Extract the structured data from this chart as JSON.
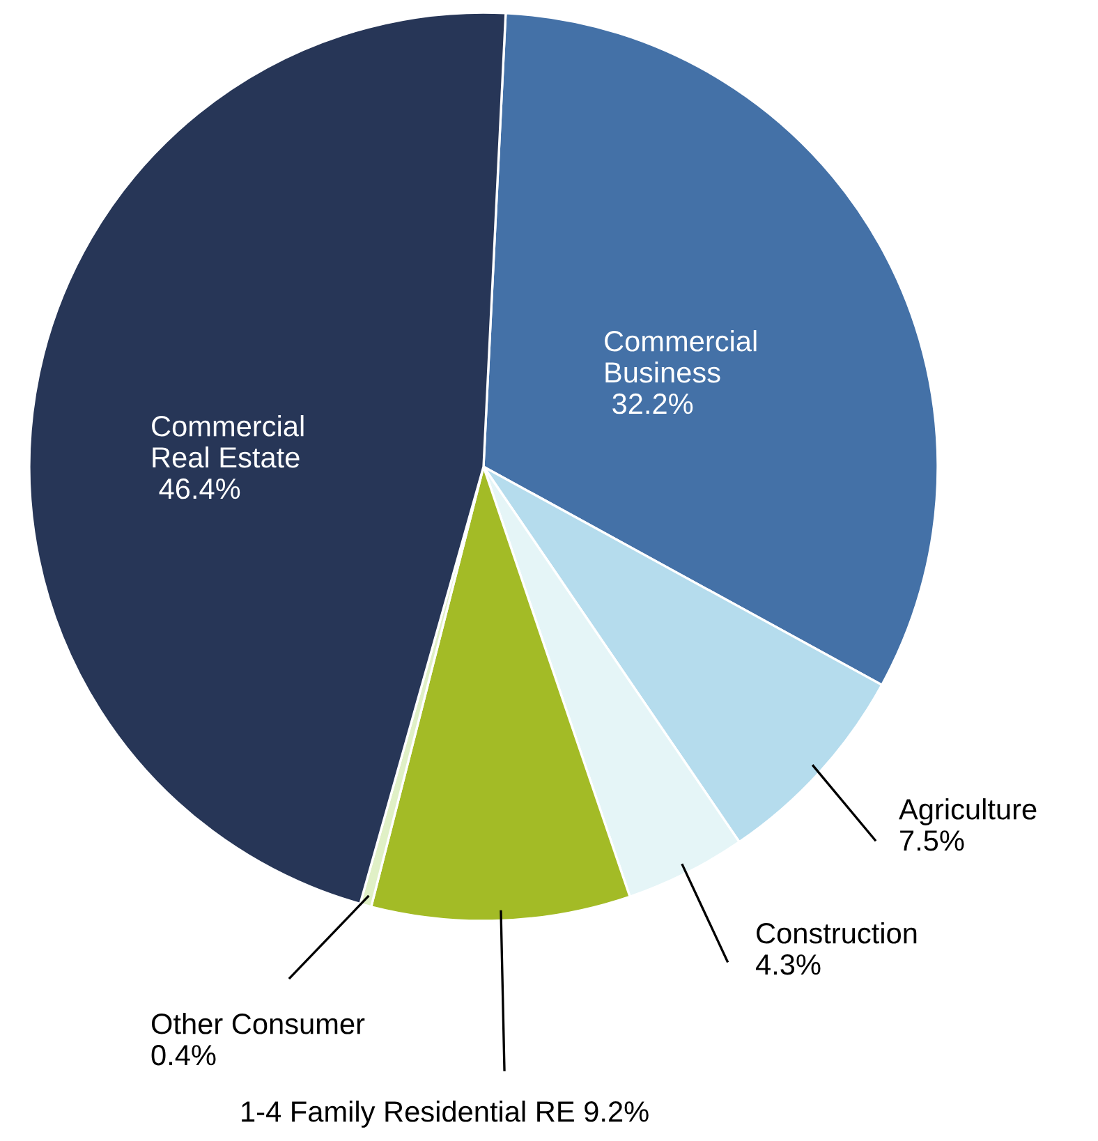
{
  "chart_data": {
    "type": "pie",
    "categories": [
      "Commercial Business",
      "Agriculture",
      "Construction",
      "1-4 Family Residential RE",
      "Other Consumer",
      "Commercial Real Estate"
    ],
    "values": [
      32.2,
      7.5,
      4.3,
      9.2,
      0.4,
      46.4
    ],
    "colors": [
      "#4471a7",
      "#b5dced",
      "#e5f5f7",
      "#a3bb26",
      "#e0f0c6",
      "#273657"
    ],
    "value_labels": [
      "32.2%",
      "7.5%",
      "4.3%",
      "9.2%",
      "0.4%",
      "46.4%"
    ]
  }
}
